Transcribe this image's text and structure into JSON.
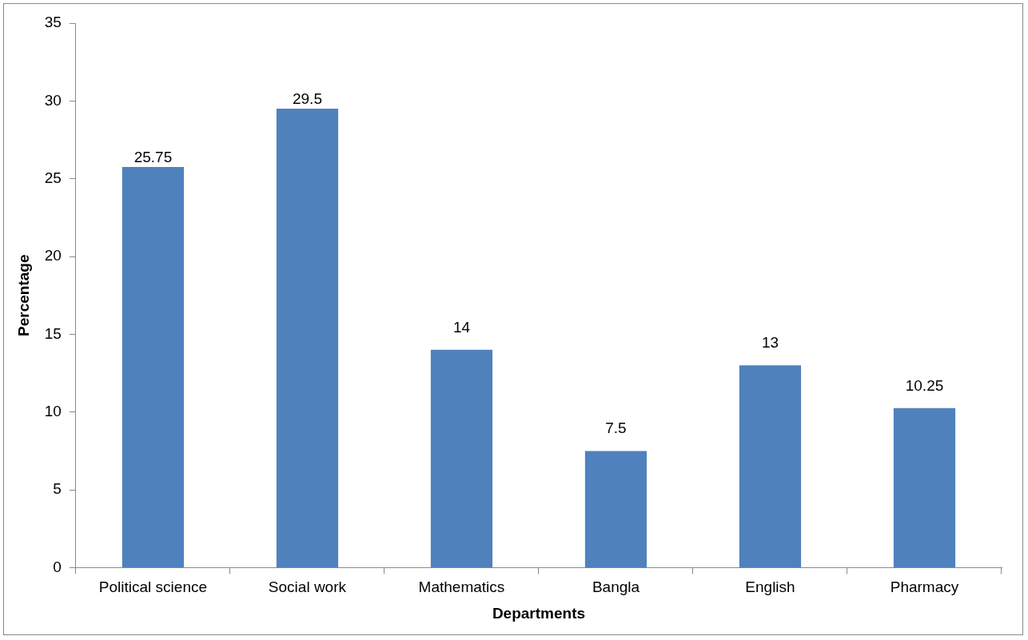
{
  "chart_data": {
    "type": "bar",
    "xlabel": "Departments",
    "ylabel": "Percentage",
    "categories": [
      "Political science",
      "Social work",
      "Mathematics",
      "Bangla",
      "English",
      "Pharmacy"
    ],
    "values": [
      25.75,
      29.5,
      14,
      7.5,
      13,
      10.25
    ],
    "color": "#4f81bd",
    "ylim": [
      0,
      35
    ],
    "yticks": [
      0,
      5,
      10,
      15,
      20,
      25,
      30,
      35
    ],
    "grid": false,
    "legend": false,
    "data_labels": true
  }
}
